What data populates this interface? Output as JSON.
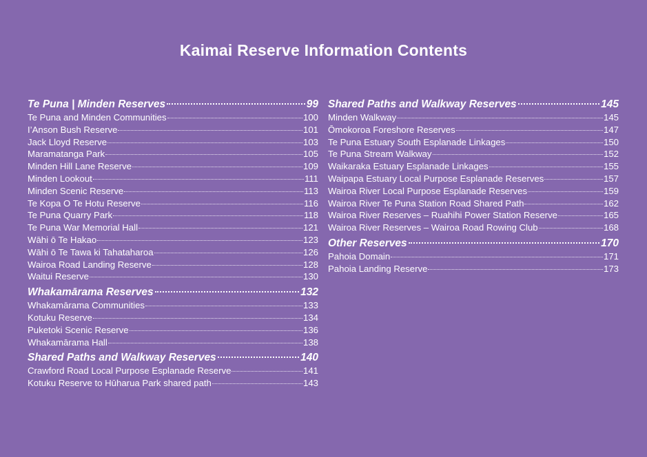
{
  "title": "Kaimai Reserve Information Contents",
  "columns": [
    {
      "sections": [
        {
          "heading": {
            "label": "Te Puna | Minden Reserves",
            "page": "99"
          },
          "items": [
            {
              "label": "Te Puna and Minden Communities",
              "page": "100"
            },
            {
              "label": "I’Anson Bush Reserve",
              "page": "101"
            },
            {
              "label": "Jack Lloyd Reserve",
              "page": "103"
            },
            {
              "label": "Maramatanga Park",
              "page": "105"
            },
            {
              "label": "Minden Hill Lane Reserve",
              "page": "109"
            },
            {
              "label": "Minden Lookout",
              "page": "111"
            },
            {
              "label": "Minden Scenic Reserve",
              "page": "113"
            },
            {
              "label": "Te Kopa O Te Hotu Reserve",
              "page": "116"
            },
            {
              "label": "Te Puna Quarry Park",
              "page": "118"
            },
            {
              "label": "Te Puna War Memorial Hall",
              "page": "121"
            },
            {
              "label": "Wāhi ō Te Hakao",
              "page": "123"
            },
            {
              "label": "Wāhi ō Te Tawa ki Tahataharoa",
              "page": "126"
            },
            {
              "label": "Wairoa Road Landing Reserve",
              "page": "128"
            },
            {
              "label": "Waitui Reserve",
              "page": "130"
            }
          ]
        },
        {
          "heading": {
            "label": "Whakamārama Reserves",
            "page": "132"
          },
          "items": [
            {
              "label": "Whakamārama Communities",
              "page": "133"
            },
            {
              "label": "Kotuku Reserve",
              "page": "134"
            },
            {
              "label": "Puketoki Scenic Reserve",
              "page": "136"
            },
            {
              "label": "Whakamārama Hall",
              "page": "138"
            }
          ]
        },
        {
          "heading": {
            "label": "Shared Paths and Walkway Reserves",
            "page": "140"
          },
          "items": [
            {
              "label": "Crawford Road Local Purpose Esplanade Reserve",
              "page": "141"
            },
            {
              "label": "Kotuku Reserve to Hūharua Park shared path",
              "page": "143"
            }
          ]
        }
      ]
    },
    {
      "sections": [
        {
          "heading": {
            "label": "Shared Paths and Walkway Reserves",
            "page": "145"
          },
          "items": [
            {
              "label": "Minden Walkway",
              "page": "145"
            },
            {
              "label": "Ōmokoroa Foreshore Reserves",
              "page": "147"
            },
            {
              "label": "Te Puna Estuary South Esplanade Linkages",
              "page": "150"
            },
            {
              "label": "Te Puna Stream Walkway",
              "page": "152"
            },
            {
              "label": "Waikaraka Estuary Esplanade Linkages",
              "page": "155"
            },
            {
              "label": "Waipapa Estuary Local Purpose Esplanade Reserves",
              "page": "157"
            },
            {
              "label": "Wairoa River Local Purpose Esplanade Reserves",
              "page": "159"
            },
            {
              "label": "Wairoa River Te Puna Station Road Shared Path",
              "page": "162"
            },
            {
              "label": "Wairoa River Reserves – Ruahihi Power Station Reserve",
              "page": "165"
            },
            {
              "label": "Wairoa River Reserves – Wairoa Road Rowing Club",
              "page": "168"
            }
          ]
        },
        {
          "heading": {
            "label": "Other Reserves",
            "page": "170"
          },
          "items": [
            {
              "label": "Pahoia Domain",
              "page": "171"
            },
            {
              "label": "Pahoia Landing Reserve",
              "page": "173"
            }
          ]
        }
      ]
    }
  ]
}
